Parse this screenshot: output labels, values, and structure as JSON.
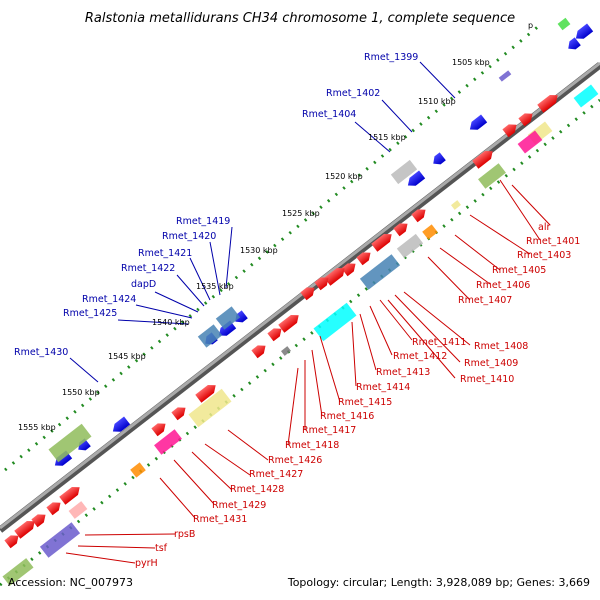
{
  "title": "Ralstonia metallidurans CH34 chromosome 1, complete sequence",
  "strand_marker": "p",
  "footer": {
    "accession": "Accession: NC_007973",
    "summary": "Topology: circular; Length: 3,928,089 bp; Genes: 3,669"
  },
  "scale_labels": [
    "1505 kbp",
    "1510 kbp",
    "1515 kbp",
    "1520 kbp",
    "1525 kbp",
    "1530 kbp",
    "1535 kbp",
    "1540 kbp",
    "1545 kbp",
    "1550 kbp",
    "1555 kbp"
  ],
  "blue_labels": [
    "Rmet_1399",
    "Rmet_1402",
    "Rmet_1404",
    "Rmet_1419",
    "Rmet_1420",
    "Rmet_1421",
    "Rmet_1422",
    "dapD",
    "Rmet_1424",
    "Rmet_1425",
    "Rmet_1430"
  ],
  "red_labels": [
    "alr",
    "Rmet_1401",
    "Rmet_1403",
    "Rmet_1405",
    "Rmet_1406",
    "Rmet_1407",
    "Rmet_1408",
    "Rmet_1409",
    "Rmet_1410",
    "Rmet_1411",
    "Rmet_1412",
    "Rmet_1413",
    "Rmet_1414",
    "Rmet_1415",
    "Rmet_1416",
    "Rmet_1417",
    "Rmet_1418",
    "Rmet_1426",
    "Rmet_1427",
    "Rmet_1428",
    "Rmet_1429",
    "Rmet_1431",
    "rpsB",
    "tsf",
    "pyrH"
  ],
  "colors": {
    "forward_gene": "#ff0000",
    "reverse_gene": "#0000ff",
    "backbone": "#777777",
    "tick_dot": "#228b22",
    "cyan": "#00ffff",
    "steelblue": "#4682b4",
    "olive": "#8fbc5a",
    "pink": "#ff1493",
    "orange": "#ff8c00",
    "khaki": "#f0e68c",
    "gray": "#bbbbbb",
    "slateblue": "#6a5acd"
  }
}
